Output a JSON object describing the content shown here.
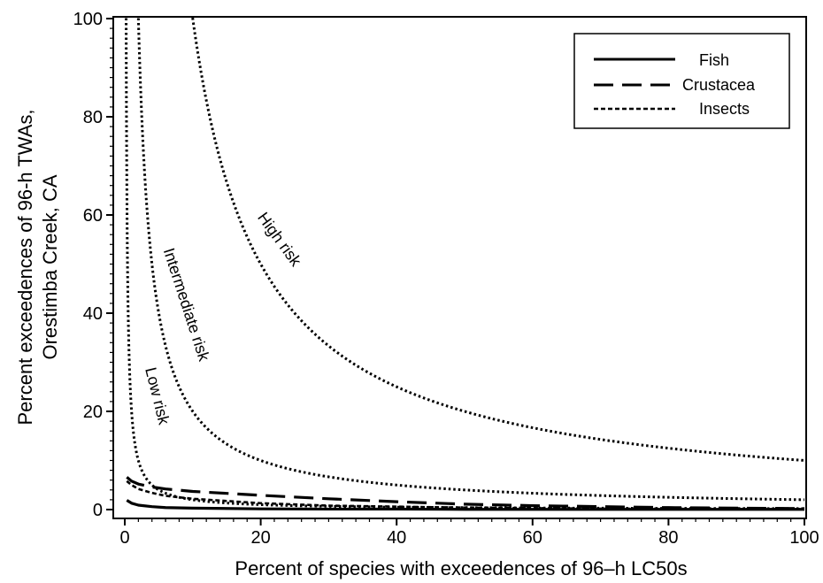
{
  "chart_data": {
    "type": "line",
    "xlabel": "Percent of species with exceedences of 96–h LC50s",
    "ylabel_line1": "Percent exceedences of 96-h TWAs,",
    "ylabel_line2": "Orestimba Creek, CA",
    "xlim": [
      0,
      100
    ],
    "ylim": [
      0,
      100
    ],
    "xticks": [
      0,
      20,
      40,
      60,
      80,
      100
    ],
    "yticks": [
      0,
      20,
      40,
      60,
      80,
      100
    ],
    "grid": false,
    "legend_position": "top-right",
    "series": [
      {
        "name": "Fish",
        "style": "solid",
        "x": [
          0.3,
          1,
          2,
          4,
          6,
          10,
          20,
          30,
          40,
          50,
          60,
          70,
          80,
          90,
          100
        ],
        "y": [
          1.9,
          1.3,
          0.9,
          0.6,
          0.4,
          0.3,
          0.15,
          0.1,
          0.1,
          0.05,
          0.05,
          0.05,
          0.05,
          0.05,
          0.05
        ]
      },
      {
        "name": "Crustacea",
        "style": "long-dash",
        "x": [
          0.3,
          1,
          2,
          4,
          6,
          10,
          20,
          30,
          40,
          50,
          60,
          70,
          80,
          90,
          100
        ],
        "y": [
          6.6,
          5.8,
          5.2,
          4.6,
          4.2,
          3.7,
          2.9,
          2.2,
          1.6,
          1.1,
          0.8,
          0.6,
          0.4,
          0.3,
          0.2
        ]
      },
      {
        "name": "Insects",
        "style": "short-dash",
        "x": [
          0.3,
          1,
          2,
          4,
          6,
          10,
          20,
          30,
          40,
          50,
          60,
          70,
          80,
          90,
          100
        ],
        "y": [
          5.8,
          5.0,
          4.2,
          3.4,
          2.8,
          2.2,
          1.3,
          0.8,
          0.6,
          0.4,
          0.3,
          0.2,
          0.15,
          0.1,
          0.1
        ]
      }
    ],
    "risk_curves": [
      {
        "label": "Low risk",
        "k": 20
      },
      {
        "label": "Intermediate risk",
        "k": 200
      },
      {
        "label": "High risk",
        "k": 1000
      }
    ]
  }
}
